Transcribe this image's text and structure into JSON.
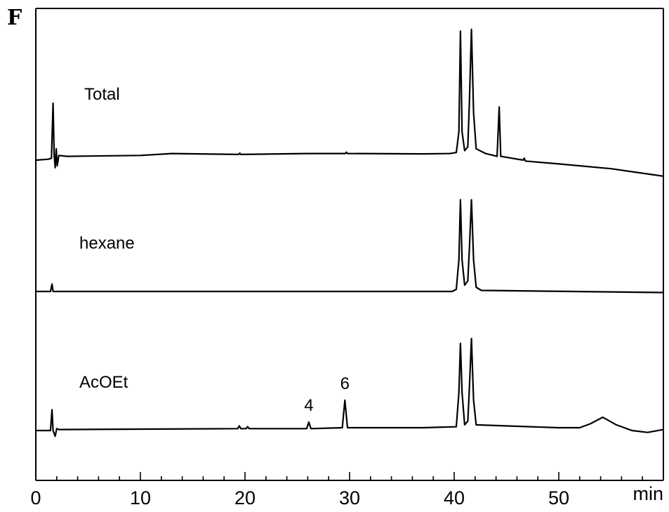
{
  "panel_label": "F",
  "chart_data": {
    "type": "line",
    "x_unit": "min",
    "xlim": [
      0,
      60
    ],
    "x_ticks": [
      "0",
      "10",
      "20",
      "30",
      "40",
      "50"
    ],
    "series": [
      {
        "name": "Total",
        "points": [
          [
            0,
            0.0
          ],
          [
            1.2,
            0.05
          ],
          [
            1.5,
            0.1
          ],
          [
            1.65,
            3.0
          ],
          [
            1.75,
            0.3
          ],
          [
            1.85,
            -0.4
          ],
          [
            1.95,
            0.6
          ],
          [
            2.05,
            -0.3
          ],
          [
            2.2,
            0.25
          ],
          [
            3,
            0.2
          ],
          [
            10,
            0.25
          ],
          [
            13,
            0.35
          ],
          [
            19.4,
            0.3
          ],
          [
            19.5,
            0.37
          ],
          [
            19.6,
            0.3
          ],
          [
            26,
            0.35
          ],
          [
            29.6,
            0.35
          ],
          [
            29.7,
            0.42
          ],
          [
            29.8,
            0.35
          ],
          [
            37,
            0.33
          ],
          [
            39.6,
            0.35
          ],
          [
            40.2,
            0.4
          ],
          [
            40.45,
            1.5
          ],
          [
            40.6,
            6.8
          ],
          [
            40.75,
            1.5
          ],
          [
            41.0,
            0.5
          ],
          [
            41.3,
            0.7
          ],
          [
            41.45,
            3.0
          ],
          [
            41.65,
            6.9
          ],
          [
            41.85,
            2.5
          ],
          [
            42.1,
            0.6
          ],
          [
            43.0,
            0.35
          ],
          [
            44.1,
            0.2
          ],
          [
            44.3,
            2.8
          ],
          [
            44.45,
            0.2
          ],
          [
            46.6,
            0.0
          ],
          [
            46.7,
            0.1
          ],
          [
            46.8,
            -0.05
          ],
          [
            50,
            -0.2
          ],
          [
            55,
            -0.45
          ],
          [
            60,
            -0.85
          ]
        ]
      },
      {
        "name": "hexane",
        "points": [
          [
            0,
            0.0
          ],
          [
            1.4,
            0.0
          ],
          [
            1.55,
            0.35
          ],
          [
            1.65,
            0.0
          ],
          [
            39.8,
            0.0
          ],
          [
            40.2,
            0.1
          ],
          [
            40.45,
            1.5
          ],
          [
            40.6,
            4.35
          ],
          [
            40.75,
            1.5
          ],
          [
            41.0,
            0.3
          ],
          [
            41.3,
            0.5
          ],
          [
            41.45,
            2.0
          ],
          [
            41.65,
            4.35
          ],
          [
            41.85,
            1.5
          ],
          [
            42.1,
            0.2
          ],
          [
            42.6,
            0.05
          ],
          [
            60,
            -0.05
          ]
        ]
      },
      {
        "name": "AcOEt",
        "points": [
          [
            0,
            0.0
          ],
          [
            1.4,
            0.0
          ],
          [
            1.55,
            1.1
          ],
          [
            1.65,
            0.0
          ],
          [
            1.85,
            -0.3
          ],
          [
            2.0,
            0.1
          ],
          [
            2.2,
            0.05
          ],
          [
            19.3,
            0.1
          ],
          [
            19.45,
            0.25
          ],
          [
            19.6,
            0.1
          ],
          [
            20.1,
            0.1
          ],
          [
            20.25,
            0.2
          ],
          [
            20.4,
            0.1
          ],
          [
            25.9,
            0.1
          ],
          [
            26.1,
            0.45
          ],
          [
            26.3,
            0.1
          ],
          [
            29.3,
            0.15
          ],
          [
            29.55,
            1.6
          ],
          [
            29.8,
            0.15
          ],
          [
            37,
            0.15
          ],
          [
            40.2,
            0.2
          ],
          [
            40.45,
            2.0
          ],
          [
            40.6,
            4.6
          ],
          [
            40.75,
            2.0
          ],
          [
            41.0,
            0.3
          ],
          [
            41.3,
            0.5
          ],
          [
            41.45,
            2.2
          ],
          [
            41.65,
            4.85
          ],
          [
            41.85,
            1.6
          ],
          [
            42.1,
            0.3
          ],
          [
            50,
            0.15
          ],
          [
            52,
            0.15
          ],
          [
            53,
            0.35
          ],
          [
            54.2,
            0.7
          ],
          [
            55.5,
            0.3
          ],
          [
            57,
            0.0
          ],
          [
            58.5,
            -0.1
          ],
          [
            60,
            0.05
          ]
        ]
      }
    ],
    "peak_labels": [
      {
        "text": "4",
        "x": 26.1
      },
      {
        "text": "6",
        "x": 29.55
      }
    ]
  }
}
